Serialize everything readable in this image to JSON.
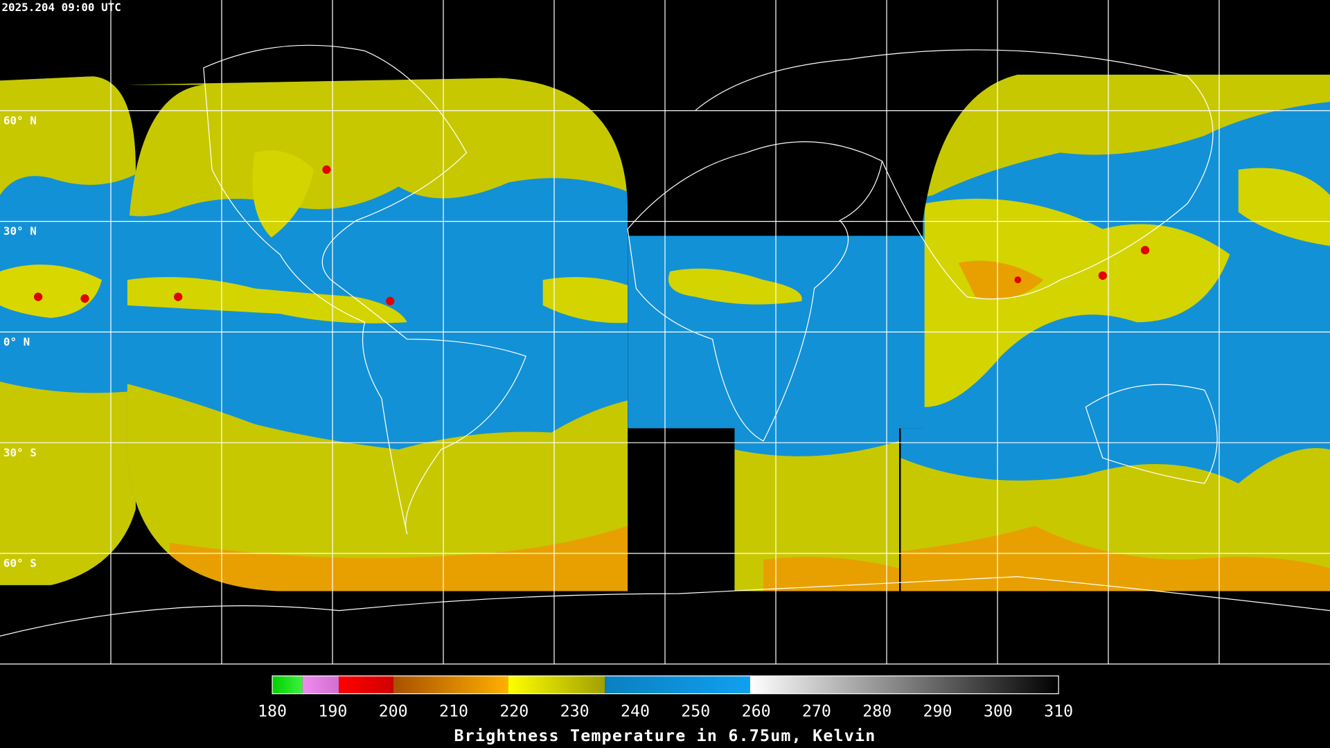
{
  "header": {
    "title": "2025.204 09:00 UTC"
  },
  "map": {
    "latitudes": [
      {
        "value": 60,
        "label": "60° N"
      },
      {
        "value": 30,
        "label": "30° N"
      },
      {
        "value": 0,
        "label": "0° N"
      },
      {
        "value": -30,
        "label": "30° S"
      },
      {
        "value": -60,
        "label": "60° S"
      }
    ]
  },
  "colorbar": {
    "label": "Brightness Temperature in 6.75um, Kelvin",
    "range": [
      180,
      310
    ],
    "ticks": [
      180,
      190,
      200,
      210,
      220,
      230,
      240,
      250,
      260,
      270,
      280,
      290,
      300,
      310
    ],
    "segments": [
      {
        "from": 180,
        "to": 185,
        "colors": [
          "#00d000",
          "#40f040"
        ]
      },
      {
        "from": 185,
        "to": 191,
        "colors": [
          "#f08cf0",
          "#d070d0"
        ]
      },
      {
        "from": 191,
        "to": 200,
        "colors": [
          "#ff0000",
          "#d00000"
        ]
      },
      {
        "from": 200,
        "to": 219,
        "colors": [
          "#a85000",
          "#ffb000"
        ]
      },
      {
        "from": 219,
        "to": 235,
        "colors": [
          "#ffff00",
          "#a0a000"
        ]
      },
      {
        "from": 235,
        "to": 259,
        "colors": [
          "#0a80c0",
          "#10a0f0"
        ]
      },
      {
        "from": 259,
        "to": 310,
        "colors": [
          "#ffffff",
          "#000000"
        ]
      }
    ]
  }
}
